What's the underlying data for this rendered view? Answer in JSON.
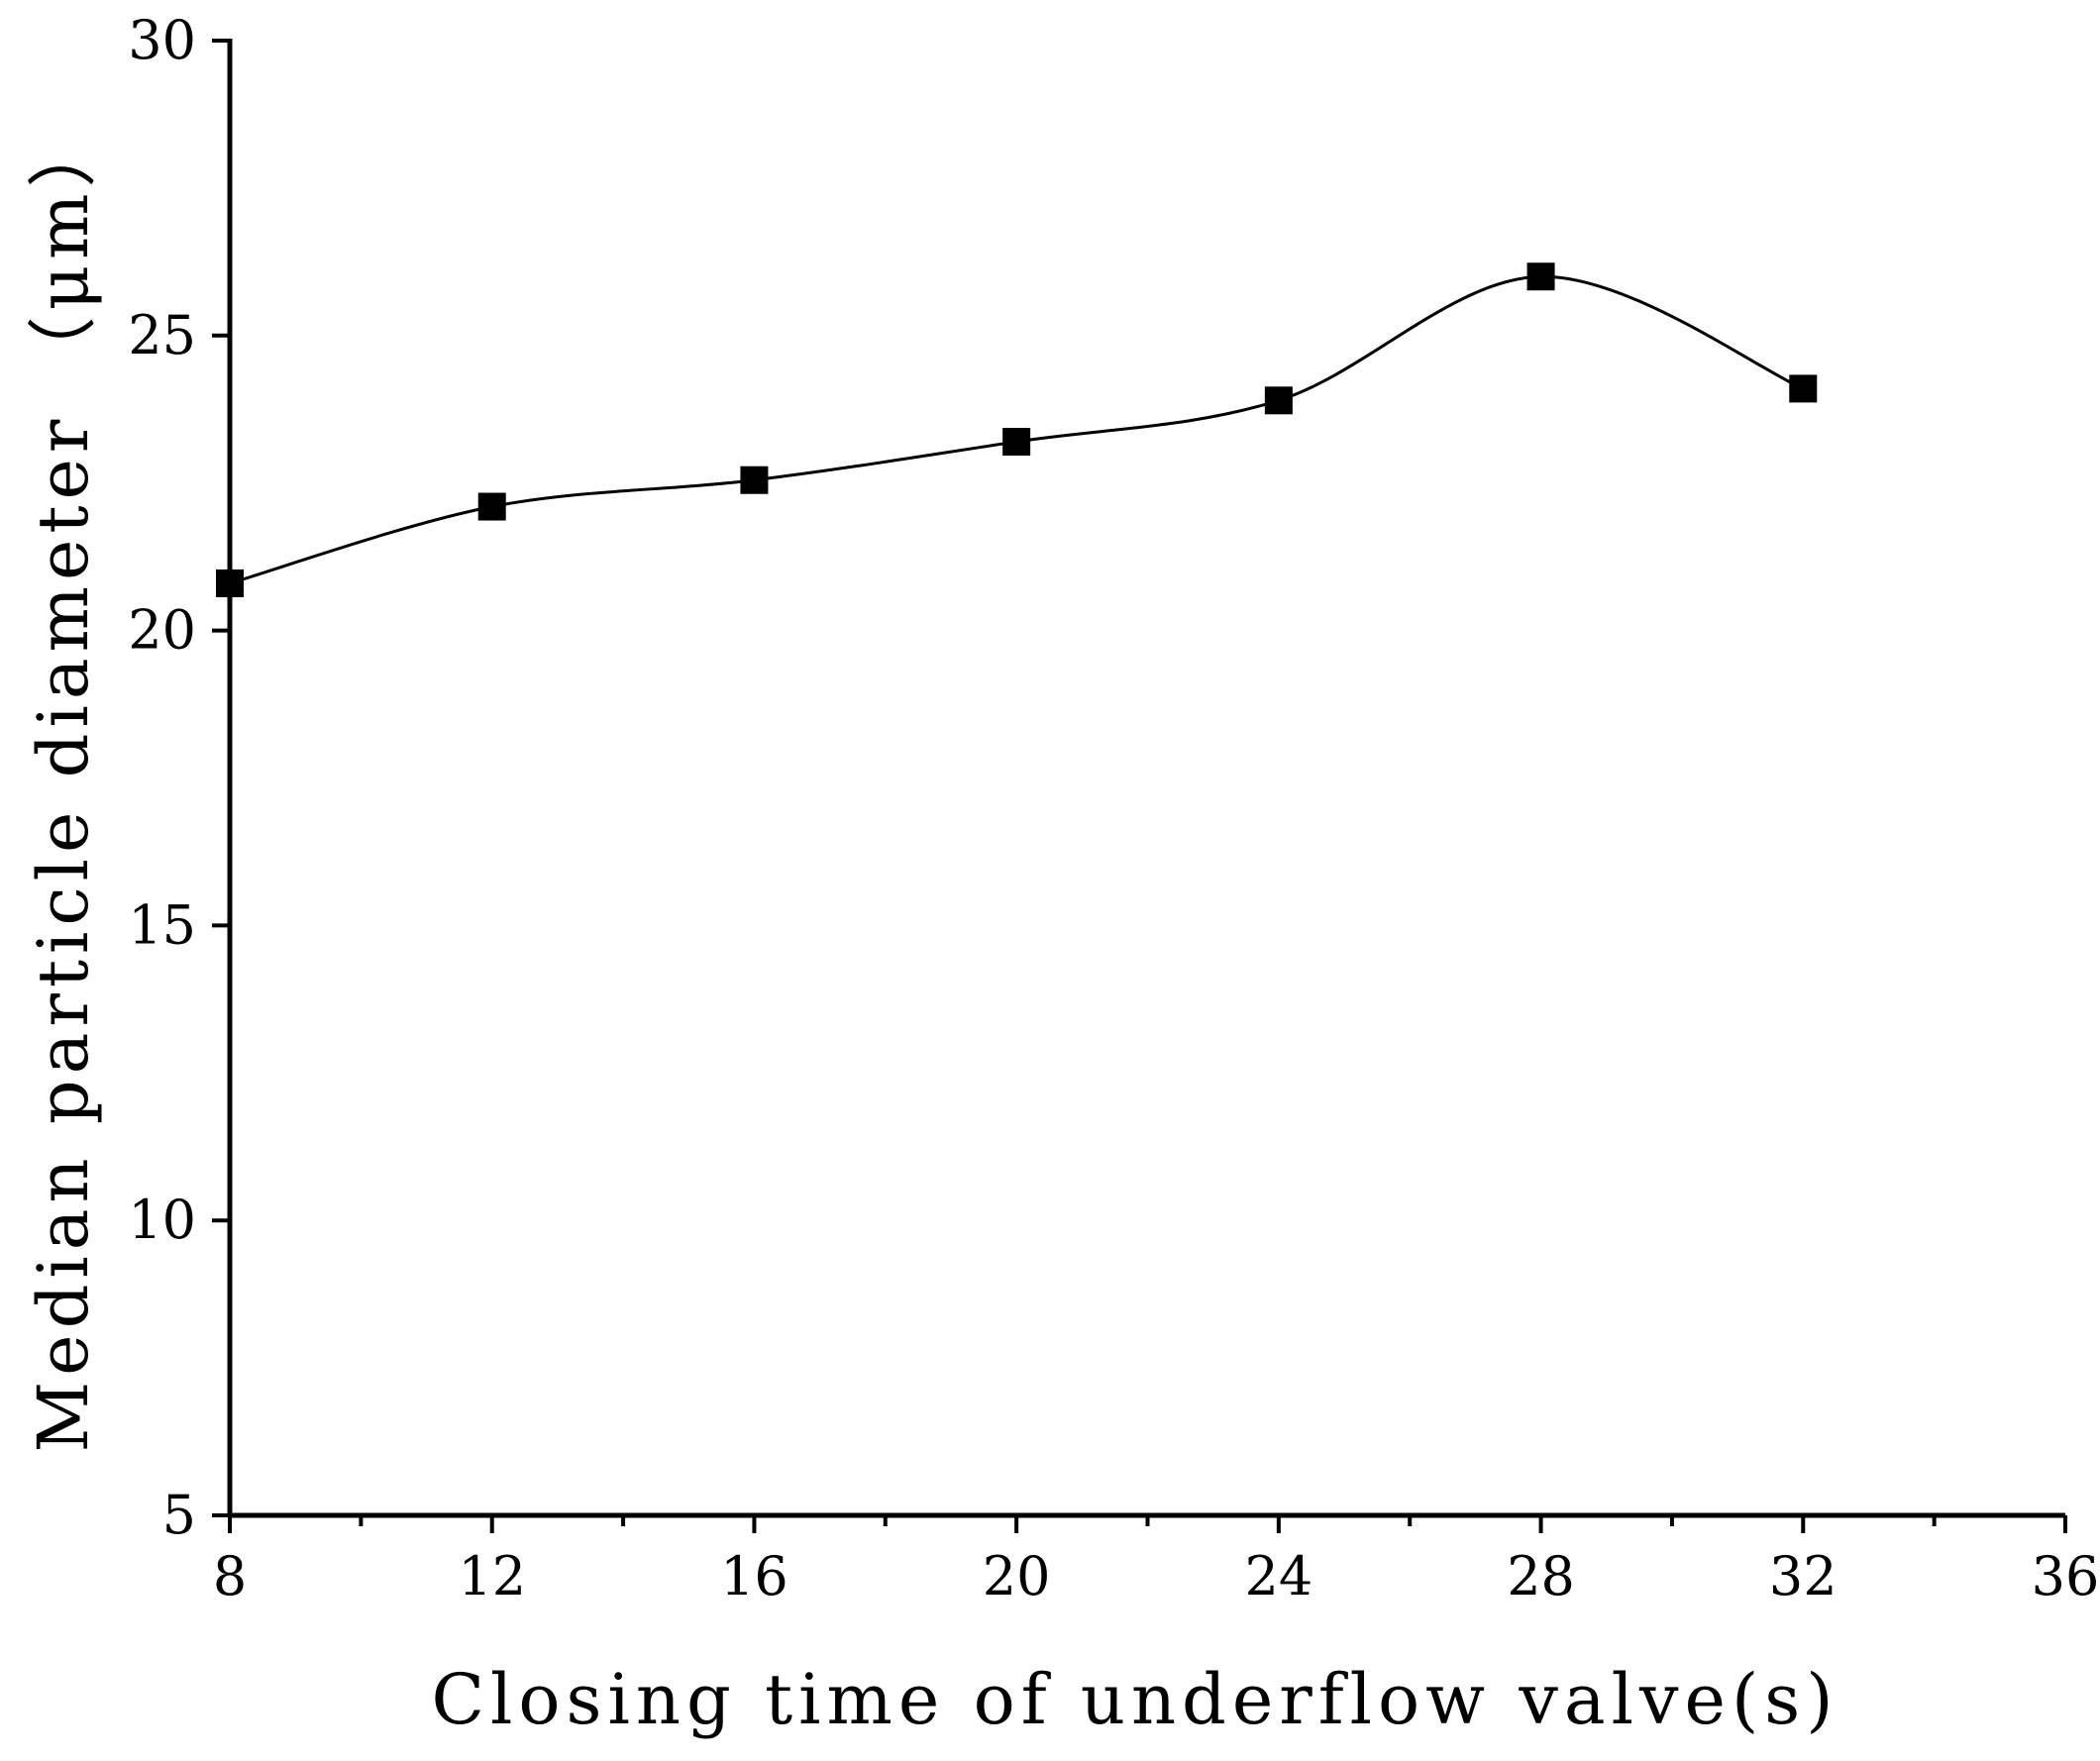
{
  "chart_data": {
    "type": "line",
    "title": "",
    "xlabel": "Closing time of underflow valve(s)",
    "ylabel": "Median particle diameter （μm）",
    "xlim": [
      8,
      36
    ],
    "ylim": [
      5,
      30
    ],
    "x_ticks": [
      8,
      12,
      16,
      20,
      24,
      28,
      32,
      36
    ],
    "y_ticks": [
      5,
      10,
      15,
      20,
      25,
      30
    ],
    "x_tick_labels": [
      "8",
      "12",
      "16",
      "20",
      "24",
      "28",
      "32",
      "36"
    ],
    "y_tick_labels": [
      "5",
      "10",
      "15",
      "20",
      "25",
      "30"
    ],
    "x_minor_step": 2,
    "grid": false,
    "smooth": true,
    "marker": "square",
    "series": [
      {
        "x": [
          8,
          12,
          16,
          20,
          24,
          28,
          32
        ],
        "values": [
          20.8,
          22.1,
          22.55,
          23.2,
          23.9,
          26.0,
          24.1
        ]
      }
    ],
    "colors": {
      "line": "#000000",
      "marker": "#000000",
      "axis": "#000000"
    }
  }
}
